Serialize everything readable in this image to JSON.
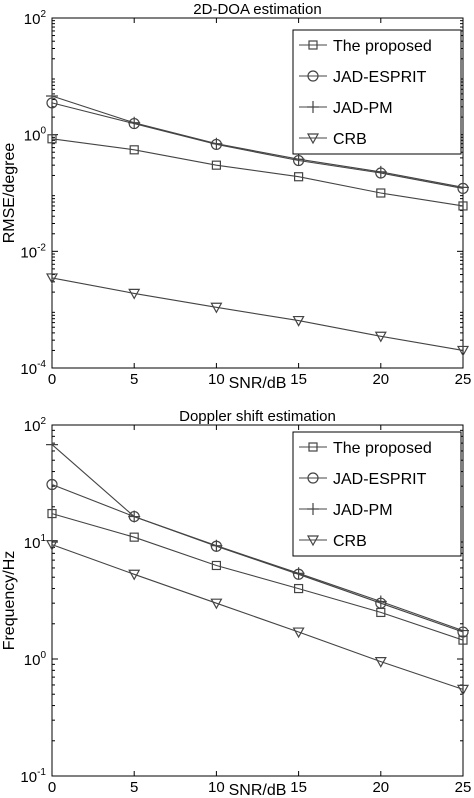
{
  "chart_data": [
    {
      "type": "line",
      "title": "2D-DOA estimation",
      "xlabel": "SNR/dB",
      "ylabel": "RMSE/degree",
      "yscale": "log",
      "xlim": [
        0,
        25
      ],
      "ylim": [
        0.0001,
        100
      ],
      "xticks": [
        "0",
        "5",
        "10",
        "15",
        "20",
        "25"
      ],
      "yticks": [
        {
          "base": "10",
          "exp": "-4"
        },
        {
          "base": "10",
          "exp": "-2"
        },
        {
          "base": "10",
          "exp": "0"
        },
        {
          "base": "10",
          "exp": "2"
        }
      ],
      "legend_position": "top-right",
      "x": [
        0,
        5,
        10,
        15,
        20,
        25
      ],
      "series": [
        {
          "name": "The proposed",
          "marker": "square",
          "values": [
            0.85,
            0.55,
            0.3,
            0.19,
            0.1,
            0.06
          ]
        },
        {
          "name": "JAD-ESPRIT",
          "marker": "circle",
          "values": [
            3.5,
            1.55,
            0.68,
            0.36,
            0.22,
            0.12
          ]
        },
        {
          "name": "JAD-PM",
          "marker": "plus",
          "values": [
            4.6,
            1.6,
            0.7,
            0.38,
            0.23,
            0.125
          ]
        },
        {
          "name": "CRB",
          "marker": "triangle-down",
          "values": [
            0.0035,
            0.0019,
            0.0011,
            0.00065,
            0.00035,
            0.0002
          ]
        }
      ]
    },
    {
      "type": "line",
      "title": "Doppler shift estimation",
      "xlabel": "SNR/dB",
      "ylabel": "Frequency/Hz",
      "yscale": "log",
      "xlim": [
        0,
        25
      ],
      "ylim": [
        0.1,
        100
      ],
      "xticks": [
        "0",
        "5",
        "10",
        "15",
        "20",
        "25"
      ],
      "yticks": [
        {
          "base": "10",
          "exp": "-1"
        },
        {
          "base": "10",
          "exp": "0"
        },
        {
          "base": "10",
          "exp": "1"
        },
        {
          "base": "10",
          "exp": "2"
        }
      ],
      "legend_position": "top-right",
      "x": [
        0,
        5,
        10,
        15,
        20,
        25
      ],
      "series": [
        {
          "name": "The proposed",
          "marker": "square",
          "values": [
            17.5,
            11,
            6.3,
            4.0,
            2.5,
            1.45
          ]
        },
        {
          "name": "JAD-ESPRIT",
          "marker": "circle",
          "values": [
            31,
            16.5,
            9.2,
            5.3,
            3.0,
            1.7
          ]
        },
        {
          "name": "JAD-PM",
          "marker": "plus",
          "values": [
            68,
            16.5,
            9.3,
            5.4,
            3.1,
            1.75
          ]
        },
        {
          "name": "CRB",
          "marker": "triangle-down",
          "values": [
            9.5,
            5.3,
            3.0,
            1.7,
            0.95,
            0.55
          ]
        }
      ]
    }
  ]
}
